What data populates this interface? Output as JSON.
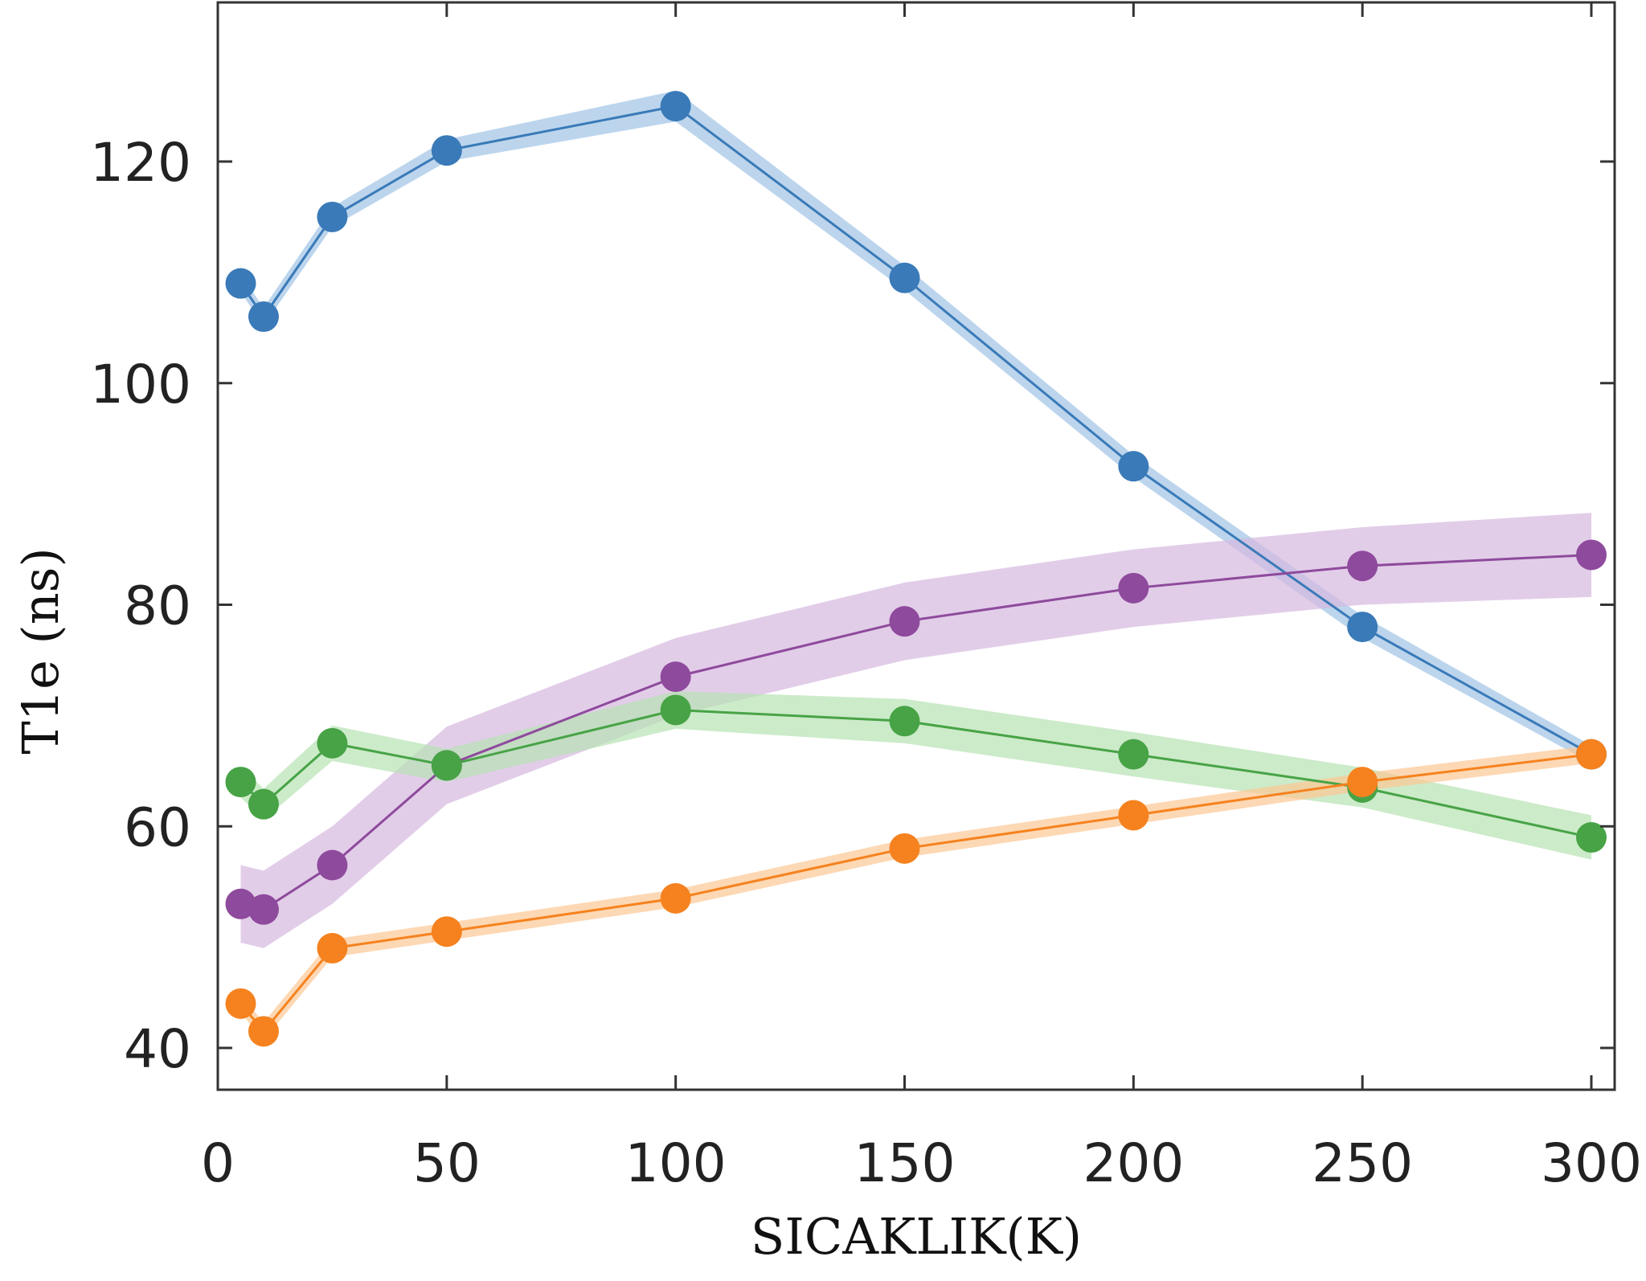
{
  "chart_data": {
    "type": "line",
    "title": "",
    "xlabel": "SICAKLIK(K)",
    "ylabel": "T1e (ns)",
    "xlim": [
      0,
      300
    ],
    "ylim": [
      36.5,
      130
    ],
    "x_ticks": [
      0,
      50,
      100,
      150,
      200,
      250,
      300
    ],
    "y_ticks": [
      40,
      60,
      80,
      100,
      120
    ],
    "x_tick_labels": [
      "0",
      "50",
      "100",
      "150",
      "200",
      "250",
      "300"
    ],
    "y_tick_labels": [
      "40",
      "60",
      "80",
      "100",
      "120"
    ],
    "grid": false,
    "legend": "none",
    "x": [
      5,
      10,
      25,
      50,
      100,
      150,
      200,
      250,
      300
    ],
    "series": [
      {
        "color": "#3a7ab8",
        "band_color": "#9fc3e6",
        "values": [
          109,
          106,
          115,
          121,
          125,
          109.5,
          92.5,
          78,
          66.5
        ],
        "band": [
          0.8,
          0.8,
          0.9,
          1.0,
          1.4,
          1.1,
          1.0,
          1.0,
          0.8
        ]
      },
      {
        "color": "#8e4a9c",
        "band_color": "#d5b8df",
        "values": [
          53,
          52.5,
          56.5,
          65.5,
          73.5,
          78.5,
          81.5,
          83.5,
          84.5
        ],
        "band": [
          3.5,
          3.5,
          3.5,
          3.5,
          3.5,
          3.5,
          3.5,
          3.5,
          3.8
        ]
      },
      {
        "color": "#47a346",
        "band_color": "#b6e2b2",
        "values": [
          64,
          62,
          67.5,
          65.5,
          70.5,
          69.5,
          66.5,
          63.5,
          59
        ],
        "band": [
          1.4,
          1.4,
          1.6,
          1.5,
          1.7,
          2.0,
          2.0,
          1.8,
          2.0
        ]
      },
      {
        "color": "#f5821f",
        "band_color": "#fcc894",
        "values": [
          44,
          41.5,
          49,
          50.5,
          53.5,
          58,
          61,
          64,
          66.5
        ],
        "band": [
          0.8,
          0.8,
          0.8,
          0.8,
          0.8,
          0.8,
          0.8,
          0.8,
          0.8
        ]
      }
    ]
  }
}
